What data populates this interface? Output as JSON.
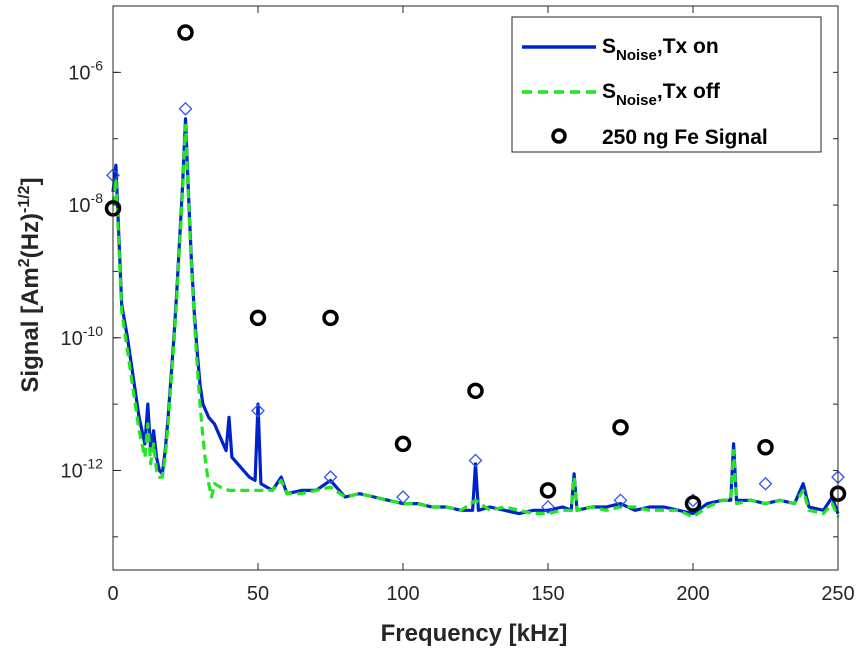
{
  "chart_data": {
    "type": "line",
    "xlabel": "Frequency [kHz]",
    "ylabel": {
      "prefix": "Signal [Am",
      "sup1": "2",
      "mid": "(Hz)",
      "sup2": "-1/2",
      "suffix": "]"
    },
    "xlim": [
      0,
      250
    ],
    "ylim_log10": [
      -13.5,
      -5
    ],
    "x_ticks": [
      0,
      50,
      100,
      150,
      200,
      250
    ],
    "x_tick_labels": [
      "0",
      "50",
      "100",
      "150",
      "200",
      "250"
    ],
    "y_ticks": [
      -12,
      -10,
      -8,
      -6
    ],
    "y_tick_labels": [
      {
        "base": "10",
        "exp": "-12"
      },
      {
        "base": "10",
        "exp": "-10"
      },
      {
        "base": "10",
        "exp": "-8"
      },
      {
        "base": "10",
        "exp": "-6"
      }
    ],
    "legend_position": "top-right",
    "series": [
      {
        "name": "S_Noise,Tx on",
        "label_main": "S",
        "label_sub": "Noise",
        "label_rest": ",Tx on",
        "style": "solid",
        "color": "#0022cc",
        "x": [
          0,
          1,
          3,
          5,
          7,
          9,
          11,
          12,
          13,
          14,
          15,
          16,
          17,
          18,
          19,
          20,
          21,
          22,
          23,
          24,
          25,
          26,
          27,
          28,
          29,
          30,
          31,
          32,
          33,
          35,
          37,
          39,
          40,
          41,
          43,
          45,
          47,
          49,
          50,
          51,
          55,
          58,
          60,
          65,
          70,
          75,
          80,
          85,
          90,
          95,
          100,
          105,
          110,
          115,
          120,
          124,
          125,
          126,
          130,
          135,
          140,
          145,
          150,
          155,
          158,
          159,
          160,
          165,
          170,
          175,
          180,
          185,
          190,
          195,
          200,
          205,
          210,
          213,
          214,
          215,
          220,
          225,
          230,
          235,
          238,
          240,
          245,
          248,
          250
        ],
        "log10_values": [
          -7.8,
          -7.4,
          -9.5,
          -10.0,
          -10.6,
          -11.2,
          -11.6,
          -11.0,
          -11.7,
          -11.4,
          -11.8,
          -12.0,
          -12.05,
          -11.7,
          -11.2,
          -10.6,
          -10.0,
          -9.3,
          -8.5,
          -7.7,
          -6.7,
          -7.8,
          -8.8,
          -9.6,
          -10.2,
          -10.7,
          -11.0,
          -11.1,
          -11.2,
          -11.3,
          -11.5,
          -11.7,
          -11.2,
          -11.8,
          -11.9,
          -12.0,
          -12.1,
          -12.15,
          -11.0,
          -12.2,
          -12.3,
          -12.1,
          -12.35,
          -12.3,
          -12.3,
          -12.15,
          -12.4,
          -12.35,
          -12.4,
          -12.45,
          -12.5,
          -12.5,
          -12.55,
          -12.55,
          -12.6,
          -12.6,
          -11.9,
          -12.6,
          -12.55,
          -12.6,
          -12.65,
          -12.6,
          -12.6,
          -12.55,
          -12.6,
          -12.05,
          -12.6,
          -12.55,
          -12.55,
          -12.5,
          -12.6,
          -12.55,
          -12.55,
          -12.6,
          -12.65,
          -12.5,
          -12.45,
          -12.45,
          -11.6,
          -12.45,
          -12.45,
          -12.5,
          -12.45,
          -12.5,
          -12.2,
          -12.55,
          -12.6,
          -12.4,
          -12.65
        ]
      },
      {
        "name": "S_Noise,Tx off",
        "label_main": "S",
        "label_sub": "Noise",
        "label_rest": ",Tx off",
        "style": "dashed",
        "color": "#22e622",
        "x": [
          0,
          1,
          3,
          5,
          7,
          9,
          11,
          12,
          13,
          14,
          15,
          16,
          17,
          18,
          19,
          20,
          21,
          22,
          23,
          24,
          25,
          26,
          27,
          28,
          29,
          30,
          31,
          32,
          33,
          34,
          35,
          37,
          40,
          45,
          50,
          55,
          58,
          60,
          65,
          70,
          75,
          80,
          85,
          90,
          95,
          100,
          105,
          110,
          115,
          120,
          125,
          130,
          135,
          140,
          145,
          150,
          155,
          158,
          159,
          160,
          165,
          170,
          175,
          180,
          185,
          190,
          195,
          200,
          205,
          210,
          213,
          214,
          215,
          220,
          225,
          230,
          235,
          238,
          240,
          245,
          248,
          250
        ],
        "log10_values": [
          -8.0,
          -7.6,
          -9.6,
          -10.2,
          -10.8,
          -11.4,
          -11.8,
          -11.3,
          -11.9,
          -11.6,
          -12.0,
          -12.1,
          -12.1,
          -11.8,
          -11.3,
          -10.7,
          -10.1,
          -9.4,
          -8.6,
          -7.8,
          -6.8,
          -7.9,
          -8.9,
          -9.7,
          -10.4,
          -11.0,
          -11.5,
          -11.9,
          -12.2,
          -12.4,
          -12.2,
          -12.25,
          -12.3,
          -12.3,
          -12.3,
          -12.3,
          -12.15,
          -12.35,
          -12.35,
          -12.3,
          -12.25,
          -12.4,
          -12.35,
          -12.4,
          -12.45,
          -12.5,
          -12.5,
          -12.55,
          -12.55,
          -12.6,
          -12.45,
          -12.6,
          -12.55,
          -12.6,
          -12.65,
          -12.65,
          -12.6,
          -12.6,
          -12.1,
          -12.6,
          -12.55,
          -12.6,
          -12.55,
          -12.55,
          -12.6,
          -12.6,
          -12.6,
          -12.7,
          -12.55,
          -12.45,
          -12.45,
          -11.7,
          -12.5,
          -12.45,
          -12.5,
          -12.45,
          -12.5,
          -12.3,
          -12.6,
          -12.65,
          -12.5,
          -12.7
        ]
      },
      {
        "name": "Tx on harmonic markers",
        "style": "diamond",
        "color": "#3355ee",
        "x": [
          0,
          25,
          50,
          75,
          100,
          125,
          150,
          175,
          200,
          225,
          250
        ],
        "log10_values": [
          -7.55,
          -6.55,
          -11.1,
          -12.1,
          -12.4,
          -11.85,
          -12.55,
          -12.45,
          -12.45,
          -12.2,
          -12.1
        ]
      },
      {
        "name": "250 ng Fe Signal",
        "label_main": "250 ng Fe Signal",
        "style": "circle",
        "color": "#000000",
        "x": [
          0,
          25,
          50,
          75,
          100,
          125,
          150,
          175,
          200,
          225,
          250
        ],
        "log10_values": [
          -8.05,
          -5.4,
          -9.7,
          -9.7,
          -11.6,
          -10.8,
          -12.3,
          -11.35,
          -12.5,
          -11.65,
          -12.35
        ]
      }
    ]
  }
}
